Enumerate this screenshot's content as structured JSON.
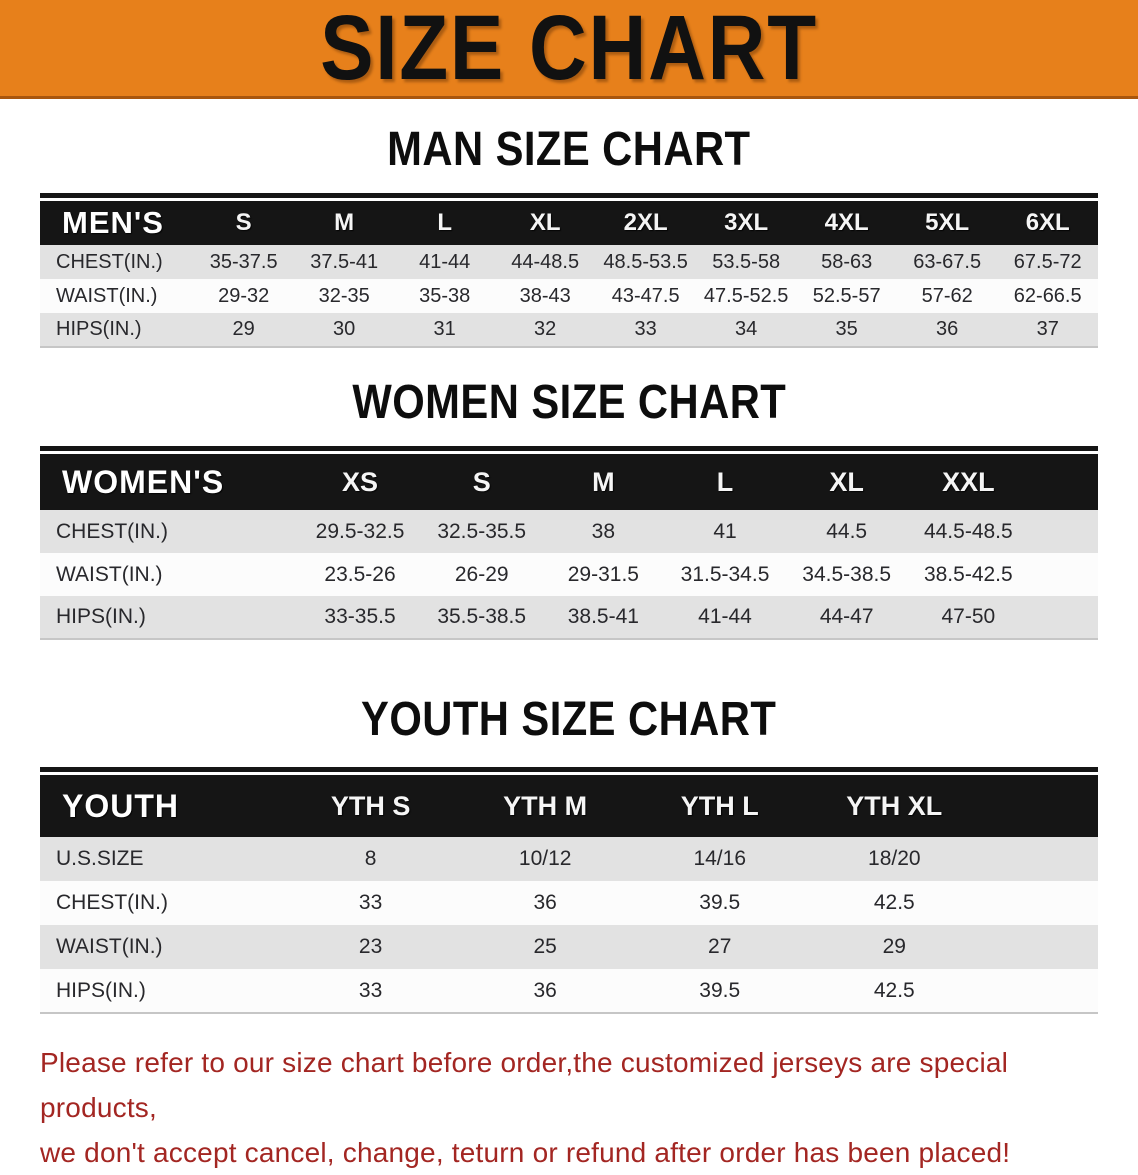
{
  "banner": {
    "title": "SIZE CHART",
    "colors": {
      "background": "#E7801B",
      "edge": "#A9560D",
      "text": "#111111"
    }
  },
  "sections": [
    {
      "heading": "MAN SIZE CHART",
      "table": {
        "corner_label": "MEN'S",
        "columns": [
          "S",
          "M",
          "L",
          "XL",
          "2XL",
          "3XL",
          "4XL",
          "5XL",
          "6XL"
        ],
        "rows": [
          {
            "label": "CHEST(IN.)",
            "values": [
              "35-37.5",
              "37.5-41",
              "41-44",
              "44-48.5",
              "48.5-53.5",
              "53.5-58",
              "58-63",
              "63-67.5",
              "67.5-72"
            ]
          },
          {
            "label": "WAIST(IN.)",
            "values": [
              "29-32",
              "32-35",
              "35-38",
              "38-43",
              "43-47.5",
              "47.5-52.5",
              "52.5-57",
              "57-62",
              "62-66.5"
            ]
          },
          {
            "label": "HIPS(IN.)",
            "values": [
              "29",
              "30",
              "31",
              "32",
              "33",
              "34",
              "35",
              "36",
              "37"
            ]
          }
        ]
      }
    },
    {
      "heading": "WOMEN SIZE CHART",
      "table": {
        "corner_label": "WOMEN'S",
        "columns": [
          "XS",
          "S",
          "M",
          "L",
          "XL",
          "XXL"
        ],
        "rows": [
          {
            "label": "CHEST(IN.)",
            "values": [
              "29.5-32.5",
              "32.5-35.5",
              "38",
              "41",
              "44.5",
              "44.5-48.5"
            ]
          },
          {
            "label": "WAIST(IN.)",
            "values": [
              "23.5-26",
              "26-29",
              "29-31.5",
              "31.5-34.5",
              "34.5-38.5",
              "38.5-42.5"
            ]
          },
          {
            "label": "HIPS(IN.)",
            "values": [
              "33-35.5",
              "35.5-38.5",
              "38.5-41",
              "41-44",
              "44-47",
              "47-50"
            ]
          }
        ]
      }
    },
    {
      "heading": "YOUTH SIZE CHART",
      "table": {
        "corner_label": "YOUTH",
        "columns": [
          "YTH S",
          "YTH M",
          "YTH L",
          "YTH XL"
        ],
        "rows": [
          {
            "label": "U.S.SIZE",
            "values": [
              "8",
              "10/12",
              "14/16",
              "18/20"
            ]
          },
          {
            "label": "CHEST(IN.)",
            "values": [
              "33",
              "36",
              "39.5",
              "42.5"
            ]
          },
          {
            "label": "WAIST(IN.)",
            "values": [
              "23",
              "25",
              "27",
              "29"
            ]
          },
          {
            "label": "HIPS(IN.)",
            "values": [
              "33",
              "36",
              "39.5",
              "42.5"
            ]
          }
        ]
      }
    }
  ],
  "footer": {
    "line1": "Please refer to our size chart before order,the customized jerseys are special products,",
    "line2": "we don't accept cancel, change, teturn or refund after order has been placed!",
    "color": "#A32622"
  },
  "colors": {
    "header_bar": "#151515",
    "row_alt": "#E2E2E2",
    "row_base": "#FCFCFC",
    "text": "#28282C"
  }
}
